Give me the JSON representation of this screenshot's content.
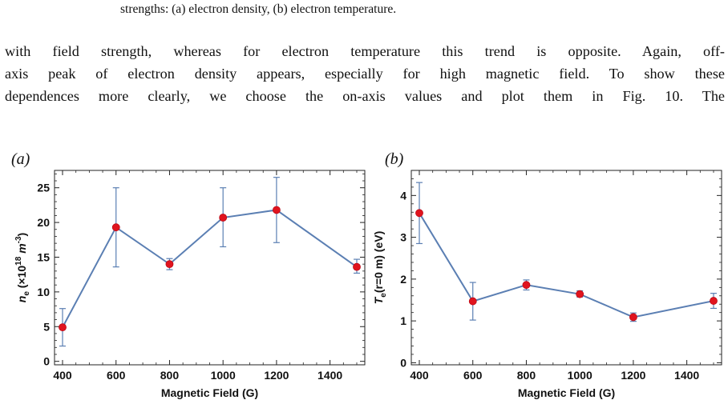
{
  "caption_fragment": "strengths: (a) electron density, (b) electron temperature.",
  "paragraph_lines": [
    "with field strength, whereas for electron temperature this trend is opposite. Again, off-",
    "axis peak of electron density appears, especially for high magnetic field. To show these",
    "dependences more clearly, we choose the on-axis values and plot them in Fig. 10. The"
  ],
  "panels": {
    "a_label": "(a)",
    "b_label": "(b)"
  },
  "chart_data": [
    {
      "type": "line",
      "panel": "(a)",
      "xlabel": "Magnetic Field (G)",
      "ylabel": "n_e (×10^18 m^-3)",
      "ylabel_parts": {
        "main": "n",
        "sub": "e",
        "pre": " (×10",
        "sup": "18",
        "mid": " m",
        "sup2": "-3",
        "post": ")"
      },
      "x": [
        400,
        600,
        800,
        1000,
        1200,
        1500
      ],
      "y": [
        4.9,
        19.3,
        14.0,
        20.7,
        21.8,
        13.6
      ],
      "err_low": [
        2.2,
        13.6,
        13.2,
        16.5,
        17.1,
        12.7
      ],
      "err_high": [
        7.6,
        25.0,
        14.8,
        25.0,
        26.5,
        14.7
      ],
      "xlim": [
        370,
        1530
      ],
      "ylim": [
        -0.5,
        27.5
      ],
      "xticks": [
        400,
        600,
        800,
        1000,
        1200,
        1400
      ],
      "yticks": [
        0,
        5,
        10,
        15,
        20,
        25
      ],
      "line_color": "#5b7fb3",
      "marker_color": "#e0141e"
    },
    {
      "type": "line",
      "panel": "(b)",
      "xlabel": "Magnetic Field (G)",
      "ylabel": "T_e(r=0 m) (eV)",
      "ylabel_parts": {
        "main": "T",
        "sub": "e",
        "post": "(r=0 m) (eV)"
      },
      "x": [
        400,
        600,
        800,
        1000,
        1200,
        1500
      ],
      "y": [
        3.58,
        1.47,
        1.86,
        1.64,
        1.09,
        1.48
      ],
      "err_low": [
        2.85,
        1.02,
        1.74,
        1.57,
        0.99,
        1.3
      ],
      "err_high": [
        4.31,
        1.92,
        1.98,
        1.72,
        1.19,
        1.66
      ],
      "xlim": [
        370,
        1530
      ],
      "ylim": [
        -0.05,
        4.6
      ],
      "xticks": [
        400,
        600,
        800,
        1000,
        1200,
        1400
      ],
      "yticks": [
        0,
        1,
        2,
        3,
        4
      ],
      "line_color": "#5b7fb3",
      "marker_color": "#e0141e"
    }
  ]
}
